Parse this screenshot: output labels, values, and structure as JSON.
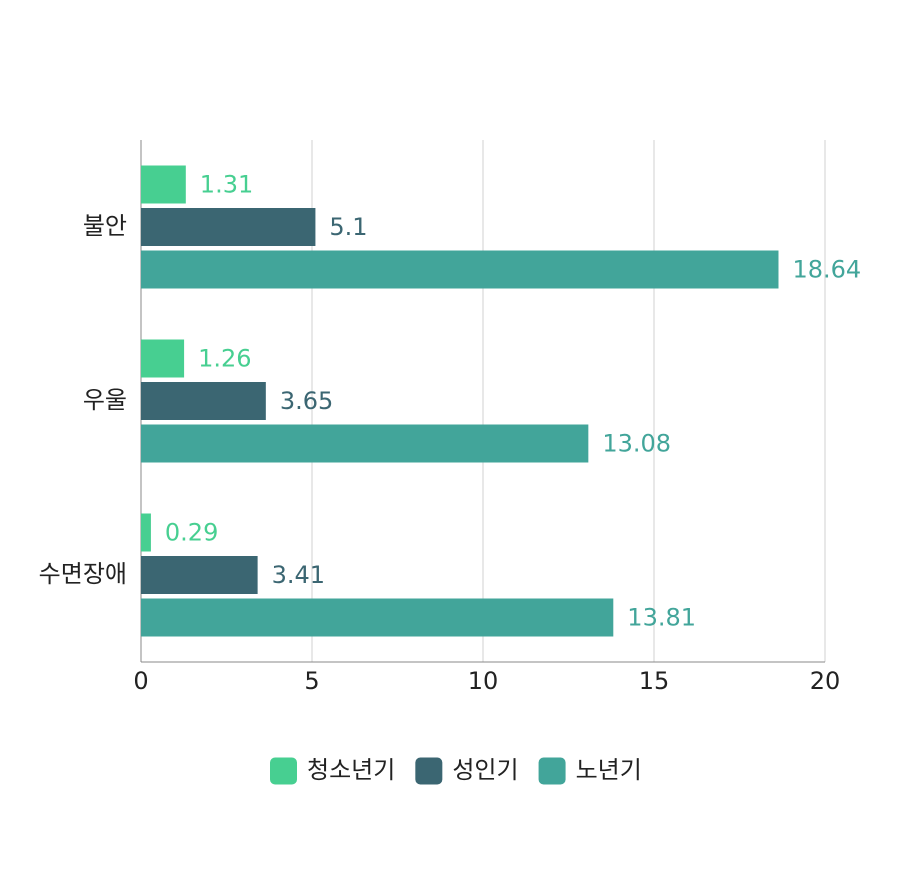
{
  "chart_data": {
    "type": "hbar",
    "categories": [
      "불안",
      "우울",
      "수면장애"
    ],
    "series": [
      {
        "name": "청소년기",
        "color": "#47cf91",
        "values": [
          1.31,
          1.26,
          0.29
        ]
      },
      {
        "name": "성인기",
        "color": "#3b6672",
        "values": [
          5.1,
          3.65,
          3.41
        ]
      },
      {
        "name": "노년기",
        "color": "#42a59a",
        "values": [
          18.64,
          13.08,
          13.81
        ]
      }
    ],
    "xlim": [
      0,
      20
    ],
    "xticks": [
      0,
      5,
      10,
      15,
      20
    ],
    "grid": true,
    "legend": "bottom"
  }
}
